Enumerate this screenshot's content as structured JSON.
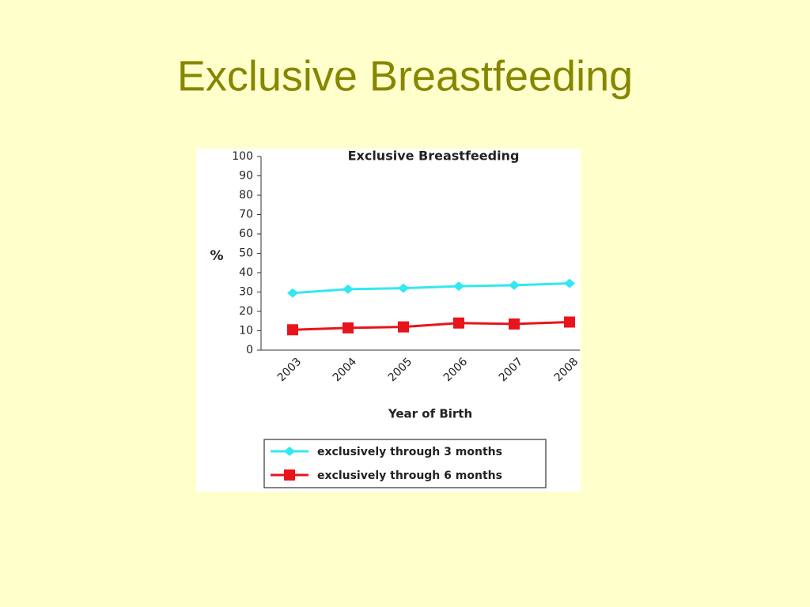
{
  "slide_title": "Exclusive Breastfeeding",
  "chart_data": {
    "type": "line",
    "title": "Exclusive Breastfeeding",
    "ylabel": "%",
    "xlabel": "Year of Birth",
    "categories": [
      "2003",
      "2004",
      "2005",
      "2006",
      "2007",
      "2008"
    ],
    "series": [
      {
        "name": "exclusively through 3 months",
        "color": "#33e8f0",
        "marker": "diamond",
        "values": [
          29.5,
          31.5,
          32,
          33,
          33.5,
          34.5
        ]
      },
      {
        "name": "exclusively through 6 months",
        "color": "#e8141c",
        "marker": "square",
        "values": [
          10.5,
          11.5,
          12,
          14,
          13.5,
          14.5
        ]
      }
    ],
    "ylim": [
      0,
      100
    ],
    "yticks": [
      0,
      10,
      20,
      30,
      40,
      50,
      60,
      70,
      80,
      90,
      100
    ],
    "grid": false,
    "legend": "bottom"
  }
}
